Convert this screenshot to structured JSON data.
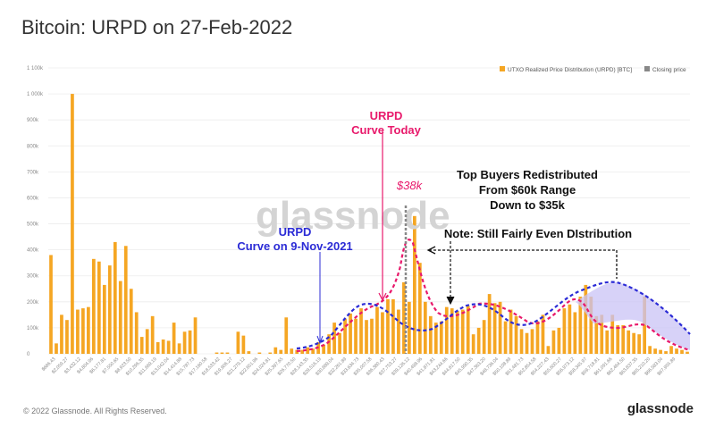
{
  "title": "Bitcoin: URPD on 27-Feb-2022",
  "footer": {
    "copyright": "© 2022 Glassnode. All Rights Reserved.",
    "brand": "glassnode"
  },
  "watermark": "glassnode",
  "legend": [
    {
      "label": "UTXO Realized Price Distribution (URPD) [BTC]",
      "color": "#f5a623"
    },
    {
      "label": "Closing price",
      "color": "#888888"
    }
  ],
  "annotations": {
    "today_label_1": "URPD",
    "today_label_2": "Curve Today",
    "nov_label_1": "URPD",
    "nov_label_2": "Curve on 9-Nov-2021",
    "price_label": "$38k",
    "top_buyers_1": "Top Buyers Redistributed",
    "top_buyers_2": "From $60k Range",
    "top_buyers_3": "Down to $35k",
    "note": "Note: Still Fairly Even DIstribution"
  },
  "colors": {
    "bar": "#f5a623",
    "today_curve": "#e8196b",
    "nov_curve": "#2b2bd6",
    "fill": "#c9c3f5",
    "closing_price": "#888888"
  },
  "chart_data": {
    "type": "bar",
    "ylim": [
      0,
      1100000
    ],
    "y_ticks": [
      "0",
      "100k",
      "200k",
      "300k",
      "400k",
      "500k",
      "600k",
      "700k",
      "800k",
      "900k",
      "1 000k",
      "1 100k"
    ],
    "x_tick_labels": [
      "$686.43",
      "$2,059.27",
      "$3,432.12",
      "$4,804.96",
      "$6,177.81",
      "$7,550.65",
      "$8,923.50",
      "$10,296.35",
      "$11,669.19",
      "$13,042.04",
      "$14,414.88",
      "$15,787.73",
      "$17,160.58",
      "$18,533.42",
      "$19,906.27",
      "$21,279.12",
      "$22,651.96",
      "$24,024.81",
      "$25,397.65",
      "$26,770.50",
      "$28,143.35",
      "$29,516.19",
      "$30,889.04",
      "$32,261.89",
      "$33,634.73",
      "$35,007.58",
      "$36,380.43",
      "$37,753.27",
      "$39,126.12",
      "$40,498.96",
      "$41,871.81",
      "$43,244.66",
      "$44,617.50",
      "$45,990.35",
      "$47,363.20",
      "$48,736.04",
      "$50,108.89",
      "$51,481.73",
      "$52,854.58",
      "$54,227.43",
      "$55,600.27",
      "$56,973.12",
      "$58,345.97",
      "$59,718.81",
      "$61,091.66",
      "$62,464.50",
      "$63,837.35",
      "$65,210.20",
      "$66,583.04",
      "$67,955.89"
    ],
    "values": [
      380000,
      40000,
      150000,
      130000,
      1000000,
      170000,
      175000,
      180000,
      365000,
      355000,
      265000,
      340000,
      430000,
      280000,
      415000,
      250000,
      160000,
      65000,
      95000,
      145000,
      45000,
      55000,
      50000,
      120000,
      40000,
      85000,
      90000,
      140000,
      0,
      0,
      0,
      5000,
      5000,
      5000,
      0,
      85000,
      70000,
      10000,
      0,
      5000,
      0,
      5000,
      25000,
      15000,
      140000,
      20000,
      15000,
      15000,
      25000,
      20000,
      45000,
      35000,
      75000,
      120000,
      80000,
      135000,
      155000,
      135000,
      175000,
      130000,
      135000,
      180000,
      160000,
      210000,
      210000,
      170000,
      275000,
      200000,
      530000,
      350000,
      200000,
      145000,
      120000,
      125000,
      180000,
      175000,
      165000,
      170000,
      185000,
      75000,
      100000,
      130000,
      230000,
      195000,
      200000,
      125000,
      170000,
      145000,
      95000,
      80000,
      95000,
      125000,
      150000,
      30000,
      90000,
      100000,
      175000,
      190000,
      160000,
      220000,
      265000,
      220000,
      145000,
      150000,
      90000,
      150000,
      110000,
      110000,
      90000,
      80000,
      75000,
      220000,
      30000,
      20000,
      15000,
      10000,
      30000,
      20000,
      15000,
      8000
    ],
    "closing_price": "$38k",
    "closing_price_bin": 68
  }
}
